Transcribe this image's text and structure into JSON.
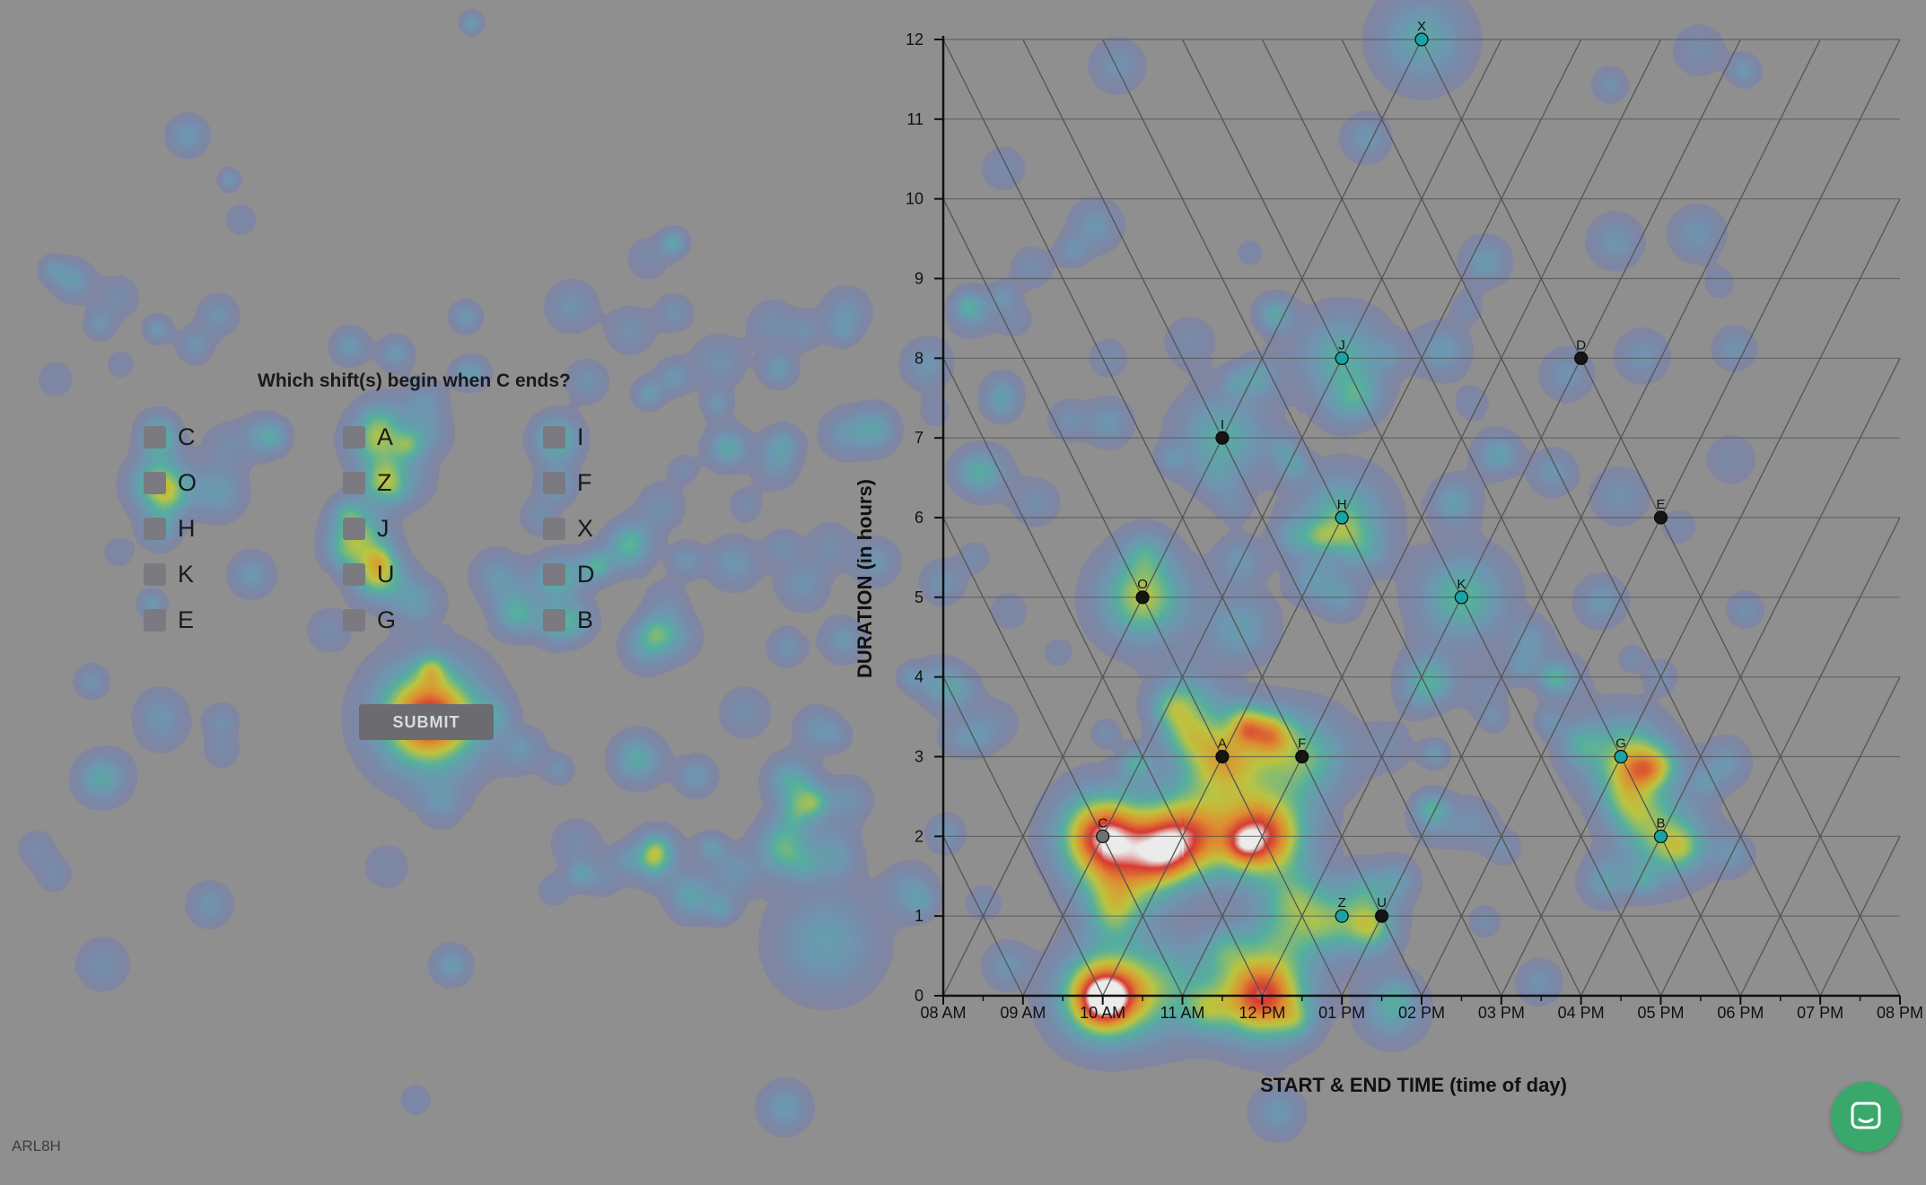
{
  "question": "Which shift(s) begin when C ends?",
  "options": [
    "C",
    "O",
    "H",
    "K",
    "E",
    "A",
    "Z",
    "J",
    "U",
    "G",
    "I",
    "F",
    "X",
    "D",
    "B"
  ],
  "submit_label": "SUBMIT",
  "participant_code": "ARL8H",
  "colors": {
    "background": "#8f8f8f",
    "grid": "#555555",
    "point_cyan": "#1aa3a3",
    "point_dark": "#151515",
    "chat_button": "#3aa86b"
  },
  "icons": {
    "chat": "chat-bubble-icon"
  },
  "chart_data": {
    "type": "scatter",
    "subtype": "triangular-model-of-intervals",
    "xlabel": "START & END TIME (time of day)",
    "ylabel": "DURATION (in hours)",
    "x_ticks": [
      "08 AM",
      "09 AM",
      "10 AM",
      "11 AM",
      "12 PM",
      "01 PM",
      "02 PM",
      "03 PM",
      "04 PM",
      "05 PM",
      "06 PM",
      "07 PM",
      "08 PM"
    ],
    "x_range_hours": [
      8,
      20
    ],
    "y_ticks": [
      "0",
      "1",
      "2",
      "3",
      "4",
      "5",
      "6",
      "7",
      "8",
      "9",
      "10",
      "11",
      "12"
    ],
    "ylim": [
      0,
      12
    ],
    "grid": true,
    "points": [
      {
        "label": "X",
        "midpoint": 14,
        "duration": 12,
        "color": "cyan"
      },
      {
        "label": "J",
        "midpoint": 13,
        "duration": 8,
        "color": "cyan"
      },
      {
        "label": "D",
        "midpoint": 16,
        "duration": 8,
        "color": "dark"
      },
      {
        "label": "I",
        "midpoint": 11.5,
        "duration": 7,
        "color": "dark"
      },
      {
        "label": "H",
        "midpoint": 13,
        "duration": 6,
        "color": "cyan"
      },
      {
        "label": "E",
        "midpoint": 17,
        "duration": 6,
        "color": "dark"
      },
      {
        "label": "O",
        "midpoint": 10.5,
        "duration": 5,
        "color": "dark"
      },
      {
        "label": "K",
        "midpoint": 14.5,
        "duration": 5,
        "color": "cyan"
      },
      {
        "label": "A",
        "midpoint": 11.5,
        "duration": 3,
        "color": "dark"
      },
      {
        "label": "F",
        "midpoint": 12.5,
        "duration": 3,
        "color": "dark"
      },
      {
        "label": "G",
        "midpoint": 16.5,
        "duration": 3,
        "color": "cyan"
      },
      {
        "label": "C",
        "midpoint": 10,
        "duration": 2,
        "color": "grey"
      },
      {
        "label": "B",
        "midpoint": 17,
        "duration": 2,
        "color": "cyan"
      },
      {
        "label": "Z",
        "midpoint": 13,
        "duration": 1,
        "color": "cyan"
      },
      {
        "label": "U",
        "midpoint": 13.5,
        "duration": 1,
        "color": "dark"
      }
    ],
    "heatmap_hotspots": [
      {
        "midpoint": 10,
        "duration": 2,
        "intensity": 1.0
      },
      {
        "midpoint": 12,
        "duration": 2,
        "intensity": 0.95
      },
      {
        "midpoint": 11,
        "duration": 2,
        "intensity": 0.85
      },
      {
        "midpoint": 10,
        "duration": 0,
        "intensity": 0.95
      },
      {
        "midpoint": 12,
        "duration": 0,
        "intensity": 0.95
      },
      {
        "midpoint": 11.5,
        "duration": 3,
        "intensity": 0.7
      },
      {
        "midpoint": 10.5,
        "duration": 5,
        "intensity": 0.6
      },
      {
        "midpoint": 12.5,
        "duration": 3,
        "intensity": 0.5
      },
      {
        "midpoint": 17,
        "duration": 2,
        "intensity": 0.5
      },
      {
        "midpoint": 16.5,
        "duration": 3,
        "intensity": 0.45
      },
      {
        "midpoint": 13,
        "duration": 6,
        "intensity": 0.45
      },
      {
        "midpoint": 14.5,
        "duration": 5,
        "intensity": 0.45
      },
      {
        "midpoint": 13,
        "duration": 8,
        "intensity": 0.4
      },
      {
        "midpoint": 11.5,
        "duration": 7,
        "intensity": 0.4
      },
      {
        "midpoint": 14,
        "duration": 12,
        "intensity": 0.35
      },
      {
        "midpoint": 13,
        "duration": 1,
        "intensity": 0.35
      }
    ]
  }
}
